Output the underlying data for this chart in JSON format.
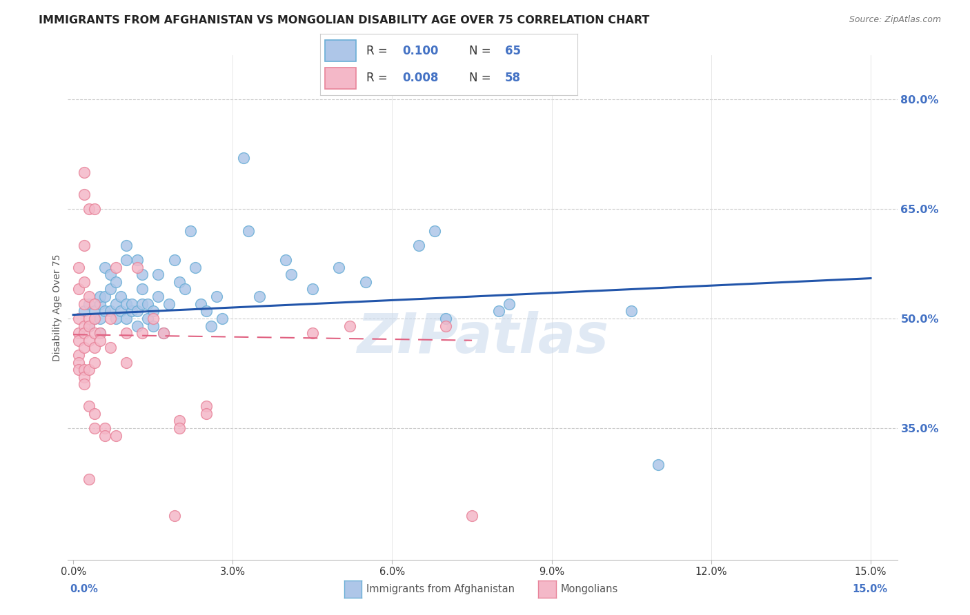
{
  "title": "IMMIGRANTS FROM AFGHANISTAN VS MONGOLIAN DISABILITY AGE OVER 75 CORRELATION CHART",
  "source": "Source: ZipAtlas.com",
  "ylabel": "Disability Age Over 75",
  "x_tick_labels": [
    "0.0%",
    "3.0%",
    "6.0%",
    "9.0%",
    "12.0%",
    "15.0%"
  ],
  "x_tick_values": [
    0.0,
    3.0,
    6.0,
    9.0,
    12.0,
    15.0
  ],
  "y_tick_labels": [
    "80.0%",
    "65.0%",
    "50.0%",
    "35.0%"
  ],
  "y_tick_values": [
    80.0,
    65.0,
    50.0,
    35.0
  ],
  "xlim": [
    -0.1,
    15.5
  ],
  "ylim": [
    17.0,
    86.0
  ],
  "legend_label1": "Immigrants from Afghanistan",
  "legend_label2": "Mongolians",
  "blue_r": "0.100",
  "blue_n": "65",
  "pink_r": "0.008",
  "pink_n": "58",
  "blue_scatter": [
    [
      0.2,
      51
    ],
    [
      0.3,
      49
    ],
    [
      0.3,
      52
    ],
    [
      0.4,
      50
    ],
    [
      0.4,
      51
    ],
    [
      0.5,
      50
    ],
    [
      0.5,
      52
    ],
    [
      0.5,
      53
    ],
    [
      0.5,
      48
    ],
    [
      0.6,
      51
    ],
    [
      0.6,
      53
    ],
    [
      0.6,
      57
    ],
    [
      0.7,
      51
    ],
    [
      0.7,
      54
    ],
    [
      0.7,
      56
    ],
    [
      0.8,
      50
    ],
    [
      0.8,
      55
    ],
    [
      0.8,
      52
    ],
    [
      0.9,
      51
    ],
    [
      0.9,
      53
    ],
    [
      1.0,
      50
    ],
    [
      1.0,
      52
    ],
    [
      1.0,
      58
    ],
    [
      1.0,
      60
    ],
    [
      1.1,
      51
    ],
    [
      1.1,
      52
    ],
    [
      1.2,
      49
    ],
    [
      1.2,
      51
    ],
    [
      1.2,
      58
    ],
    [
      1.3,
      52
    ],
    [
      1.3,
      54
    ],
    [
      1.3,
      56
    ],
    [
      1.4,
      50
    ],
    [
      1.4,
      52
    ],
    [
      1.5,
      49
    ],
    [
      1.5,
      51
    ],
    [
      1.6,
      53
    ],
    [
      1.6,
      56
    ],
    [
      1.7,
      48
    ],
    [
      1.8,
      52
    ],
    [
      1.9,
      58
    ],
    [
      2.0,
      55
    ],
    [
      2.1,
      54
    ],
    [
      2.2,
      62
    ],
    [
      2.3,
      57
    ],
    [
      2.4,
      52
    ],
    [
      2.5,
      51
    ],
    [
      2.6,
      49
    ],
    [
      2.7,
      53
    ],
    [
      2.8,
      50
    ],
    [
      3.2,
      72
    ],
    [
      3.3,
      62
    ],
    [
      3.5,
      53
    ],
    [
      4.0,
      58
    ],
    [
      4.1,
      56
    ],
    [
      4.5,
      54
    ],
    [
      5.0,
      57
    ],
    [
      5.5,
      55
    ],
    [
      6.5,
      60
    ],
    [
      6.8,
      62
    ],
    [
      7.0,
      50
    ],
    [
      8.0,
      51
    ],
    [
      8.2,
      52
    ],
    [
      10.5,
      51
    ],
    [
      11.0,
      30
    ]
  ],
  "pink_scatter": [
    [
      0.1,
      57
    ],
    [
      0.1,
      54
    ],
    [
      0.1,
      50
    ],
    [
      0.1,
      48
    ],
    [
      0.1,
      47
    ],
    [
      0.1,
      45
    ],
    [
      0.1,
      44
    ],
    [
      0.1,
      43
    ],
    [
      0.2,
      70
    ],
    [
      0.2,
      67
    ],
    [
      0.2,
      60
    ],
    [
      0.2,
      55
    ],
    [
      0.2,
      52
    ],
    [
      0.2,
      49
    ],
    [
      0.2,
      48
    ],
    [
      0.2,
      46
    ],
    [
      0.2,
      43
    ],
    [
      0.2,
      42
    ],
    [
      0.2,
      41
    ],
    [
      0.3,
      65
    ],
    [
      0.3,
      53
    ],
    [
      0.3,
      50
    ],
    [
      0.3,
      49
    ],
    [
      0.3,
      47
    ],
    [
      0.3,
      43
    ],
    [
      0.3,
      38
    ],
    [
      0.3,
      28
    ],
    [
      0.4,
      65
    ],
    [
      0.4,
      52
    ],
    [
      0.4,
      50
    ],
    [
      0.4,
      48
    ],
    [
      0.4,
      46
    ],
    [
      0.4,
      44
    ],
    [
      0.4,
      37
    ],
    [
      0.4,
      35
    ],
    [
      0.5,
      48
    ],
    [
      0.5,
      47
    ],
    [
      0.6,
      35
    ],
    [
      0.6,
      34
    ],
    [
      0.7,
      50
    ],
    [
      0.7,
      46
    ],
    [
      0.8,
      57
    ],
    [
      0.8,
      34
    ],
    [
      1.0,
      48
    ],
    [
      1.0,
      44
    ],
    [
      1.2,
      57
    ],
    [
      1.3,
      48
    ],
    [
      1.5,
      50
    ],
    [
      1.7,
      48
    ],
    [
      1.9,
      23
    ],
    [
      2.0,
      36
    ],
    [
      2.0,
      35
    ],
    [
      2.5,
      38
    ],
    [
      2.5,
      37
    ],
    [
      4.5,
      48
    ],
    [
      5.2,
      49
    ],
    [
      7.0,
      49
    ],
    [
      7.5,
      23
    ]
  ],
  "blue_line_x": [
    0.0,
    15.0
  ],
  "blue_line_y": [
    50.5,
    55.5
  ],
  "pink_line_x": [
    0.0,
    7.5
  ],
  "pink_line_y": [
    47.8,
    47.0
  ],
  "title_fontsize": 11.5,
  "axis_label_fontsize": 10,
  "tick_fontsize": 10.5,
  "legend_fontsize": 12,
  "right_axis_color": "#4472c4",
  "source_fontsize": 9,
  "background_color": "#ffffff",
  "grid_color": "#cccccc",
  "watermark": "ZIPatlas",
  "watermark_color": "#c8d8ec",
  "blue_color": "#4472c4",
  "blue_fill": "#aec6e8",
  "blue_edge": "#6aaed6",
  "pink_fill": "#f4b8c8",
  "pink_edge": "#e8849a",
  "pink_line_color": "#e06080",
  "blue_line_color": "#2255aa"
}
